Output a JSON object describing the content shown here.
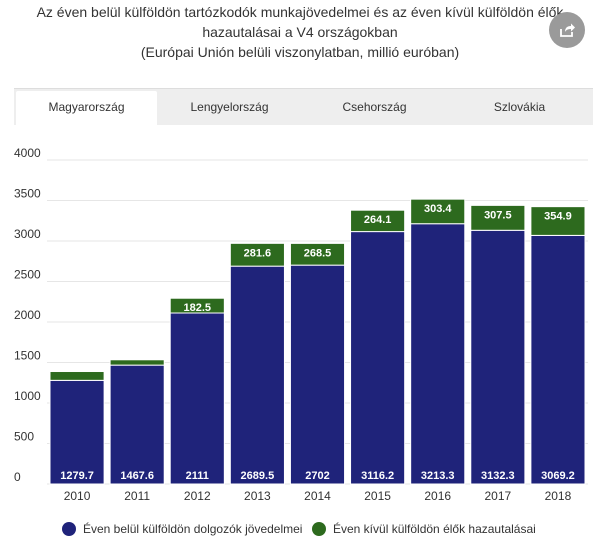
{
  "title": {
    "line1": "Az éven belül külföldön tartózkodók munkajövedelmei és az éven kívül külföldön élők",
    "line2": "hazautalásai a V4 országokban",
    "line3": "(Európai Unión belüli viszonylatban, millió euróban)"
  },
  "share_icon": "share-icon",
  "tabs": [
    "Magyarország",
    "Lengyelország",
    "Csehország",
    "Szlovákia"
  ],
  "active_tab": "Magyarország",
  "colors": {
    "series1": "#1f237a",
    "series2": "#2d6a1e",
    "grid": "#e6e6e6"
  },
  "chart_data": {
    "type": "bar",
    "stacked": true,
    "categories": [
      "2010",
      "2011",
      "2012",
      "2013",
      "2014",
      "2015",
      "2016",
      "2017",
      "2018"
    ],
    "series": [
      {
        "name": "Éven belül külföldön dolgozók jövedelmei",
        "values": [
          1279.7,
          1467.6,
          2111,
          2689.5,
          2702,
          3116.2,
          3213.3,
          3132.3,
          3069.2
        ],
        "labels": [
          "1279.7",
          "1467.6",
          "2111",
          "2689.5",
          "2702",
          "3116.2",
          "3213.3",
          "3132.3",
          "3069.2"
        ]
      },
      {
        "name": "Éven kívül külföldön élők hazautalásai",
        "values": [
          109,
          66,
          182.5,
          281.6,
          268.5,
          264.1,
          303.4,
          307.5,
          354.9
        ],
        "labels": [
          "",
          "",
          "182.5",
          "281.6",
          "268.5",
          "264.1",
          "303.4",
          "307.5",
          "354.9"
        ]
      }
    ],
    "yticks": [
      "0",
      "500",
      "1000",
      "1500",
      "2000",
      "2500",
      "3000",
      "3500",
      "4000"
    ],
    "ylim": [
      0,
      4000
    ],
    "grid": true,
    "legend_position": "bottom"
  }
}
